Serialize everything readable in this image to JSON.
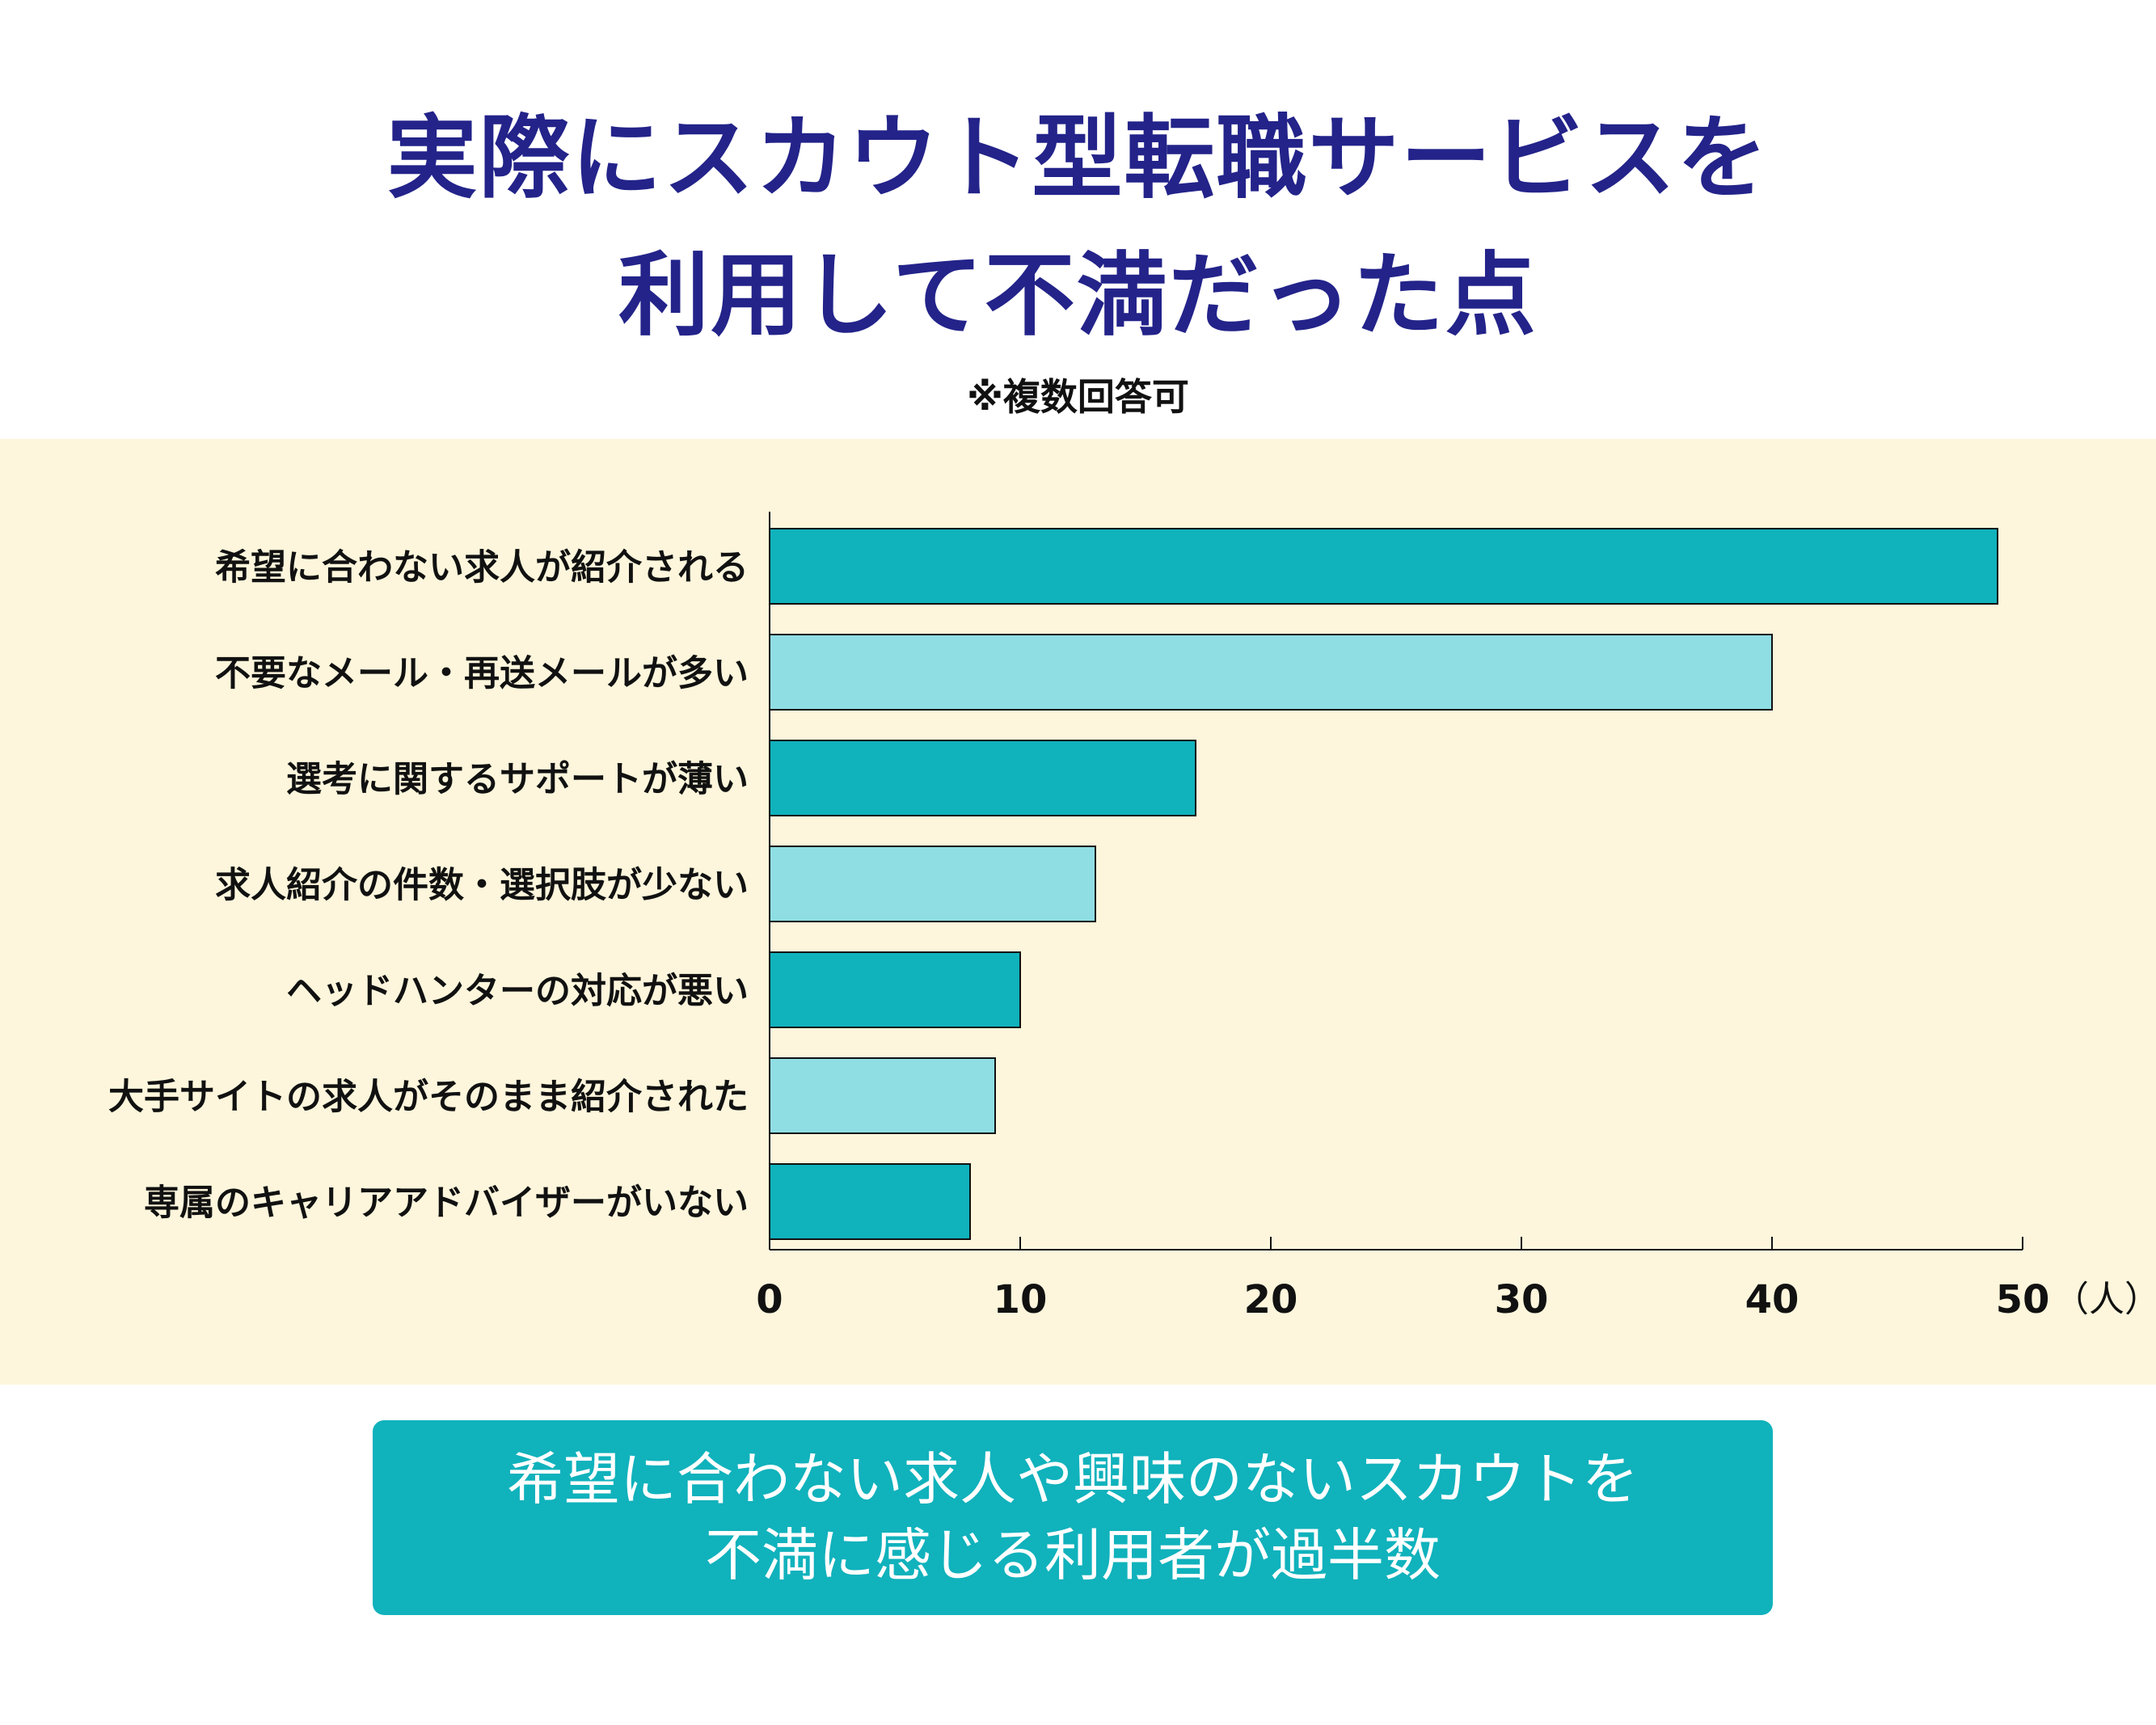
{
  "title": {
    "line1": "実際にスカウト型転職サービスを",
    "line2": "利用して不満だった点"
  },
  "note": "※複数回答可",
  "colors": {
    "title": "#23238a",
    "panel_bg": "#fdf6dc",
    "bar_dark": "#10b2bc",
    "bar_light": "#8fdee4",
    "summary_bg": "#10b2bc"
  },
  "chart_data": {
    "type": "bar",
    "orientation": "horizontal",
    "categories": [
      "希望に合わない求人が紹介される",
      "不要なメール・再送メールが多い",
      "選考に関するサポートが薄い",
      "求人紹介の件数・選択肢が少ない",
      "ヘッドハンターの対応が悪い",
      "大手サイトの求人がそのまま紹介された",
      "専属のキャリアアドバイザーがいない"
    ],
    "values": [
      49,
      40,
      17,
      13,
      10,
      9,
      8
    ],
    "bar_colors": [
      "#10b2bc",
      "#8fdee4",
      "#10b2bc",
      "#8fdee4",
      "#10b2bc",
      "#8fdee4",
      "#10b2bc"
    ],
    "xlim": [
      0,
      50
    ],
    "xticks": [
      "0",
      "10",
      "20",
      "30",
      "40",
      "50"
    ],
    "xunit": "（人）",
    "grid": false
  },
  "summary": {
    "line1": "希望に合わない求人や興味のないスカウトを",
    "line2": "不満に感じる利用者が過半数"
  }
}
